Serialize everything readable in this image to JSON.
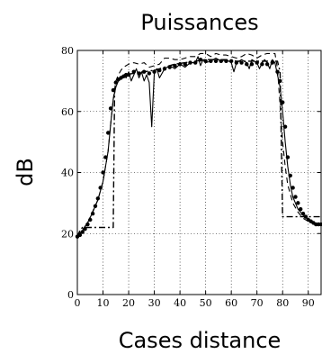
{
  "chart_data": {
    "type": "line",
    "title": "Puissances",
    "xlabel": "Cases distance",
    "ylabel": "dB",
    "xlim": [
      0,
      95
    ],
    "ylim": [
      0,
      80
    ],
    "xticks": [
      0,
      10,
      20,
      30,
      40,
      50,
      60,
      70,
      80,
      90
    ],
    "yticks": [
      0,
      20,
      40,
      60,
      80
    ],
    "grid": true,
    "series": [
      {
        "style": "dots",
        "x": [
          0,
          1,
          2,
          3,
          4,
          5,
          6,
          7,
          8,
          9,
          10,
          11,
          12,
          13,
          14,
          15,
          16,
          17,
          18,
          19,
          20,
          22,
          24,
          26,
          28,
          30,
          32,
          34,
          36,
          38,
          40,
          42,
          44,
          46,
          48,
          50,
          52,
          54,
          56,
          58,
          60,
          62,
          64,
          66,
          68,
          70,
          72,
          74,
          76,
          78,
          79,
          80,
          81,
          82,
          83,
          84,
          85,
          86,
          87,
          88,
          89,
          90,
          91,
          92,
          93,
          94,
          95
        ],
        "y": [
          19,
          19.5,
          20.5,
          21.5,
          23,
          24.5,
          26.5,
          29,
          31.5,
          35,
          40,
          45,
          53,
          61,
          67,
          69.5,
          70.5,
          71,
          71.5,
          72,
          72,
          73,
          72.5,
          73,
          72.5,
          73,
          73.5,
          74,
          74.5,
          75,
          75.5,
          75.5,
          76,
          76,
          77,
          76.5,
          76.5,
          76.5,
          76.5,
          76.5,
          76.5,
          76,
          76,
          75.5,
          75.5,
          76,
          75.5,
          75.5,
          76,
          73,
          70,
          63,
          55,
          45,
          39,
          35,
          32,
          30,
          28,
          26.5,
          25.5,
          24.5,
          24,
          23.5,
          23,
          23,
          23
        ]
      },
      {
        "style": "solid",
        "x": [
          0,
          2,
          4,
          6,
          8,
          10,
          12,
          13,
          14,
          15,
          16,
          17,
          18,
          19,
          20,
          21,
          22,
          23,
          24,
          25,
          26,
          27,
          28,
          29,
          30,
          31,
          32,
          34,
          36,
          38,
          40,
          42,
          44,
          46,
          47,
          48,
          49,
          50,
          52,
          54,
          56,
          58,
          60,
          61,
          62,
          64,
          66,
          67,
          68,
          70,
          71,
          72,
          73,
          74,
          75,
          76,
          77,
          78,
          79,
          80,
          81,
          82,
          83,
          84,
          86,
          88,
          90,
          92,
          94,
          95
        ],
        "y": [
          19,
          21,
          23.5,
          27,
          31,
          37,
          47,
          56,
          64,
          68,
          70,
          71,
          72,
          71,
          73,
          70,
          72,
          74,
          71,
          73,
          70,
          72,
          69.5,
          55,
          73,
          74,
          71,
          74,
          75,
          74,
          75.5,
          74.5,
          76,
          76,
          78,
          75,
          77,
          76,
          76.5,
          77.5,
          76.5,
          77,
          76,
          73,
          76,
          77,
          76,
          74,
          77,
          76,
          74,
          76,
          77,
          76,
          74,
          77,
          76,
          72,
          68,
          60,
          50,
          42,
          36,
          32,
          28,
          26,
          24.5,
          23.5,
          23,
          23
        ]
      },
      {
        "style": "dashed",
        "x": [
          0,
          4,
          8,
          10,
          12,
          13,
          14,
          15,
          16,
          17,
          18,
          20,
          22,
          24,
          26,
          28,
          30,
          32,
          34,
          36,
          38,
          40,
          42,
          44,
          46,
          48,
          50,
          52,
          54,
          56,
          58,
          60,
          62,
          64,
          66,
          68,
          70,
          72,
          74,
          76,
          77,
          78,
          79,
          80,
          81,
          82,
          84,
          86,
          88,
          90,
          92,
          94,
          95
        ],
        "y": [
          19,
          23.5,
          31,
          37,
          47,
          56,
          64,
          70,
          72,
          73.5,
          74.5,
          75.5,
          76,
          75.5,
          76,
          74.5,
          75,
          75.5,
          77.5,
          77.5,
          77,
          77,
          77.5,
          78,
          78,
          79,
          79,
          78,
          79,
          78.5,
          78.5,
          78,
          77.5,
          78,
          79,
          78.5,
          77.5,
          78.5,
          79,
          79,
          79,
          74,
          62,
          50,
          42,
          36,
          30,
          27,
          25,
          24,
          23.5,
          23,
          23
        ]
      },
      {
        "style": "dashdot",
        "x": [
          0,
          1,
          2,
          10,
          14,
          14.5,
          15,
          18,
          22,
          26,
          30,
          34,
          38,
          42,
          46,
          50,
          54,
          58,
          62,
          66,
          70,
          74,
          78,
          79,
          80,
          81,
          95
        ],
        "y": [
          19,
          21,
          22,
          22,
          22,
          66,
          70,
          72,
          72.5,
          73,
          73.5,
          74.5,
          75.5,
          76,
          76.5,
          77,
          77,
          77,
          76.5,
          76.5,
          76.5,
          76.5,
          76.5,
          73,
          25.5,
          25.5,
          25.5
        ]
      }
    ]
  }
}
